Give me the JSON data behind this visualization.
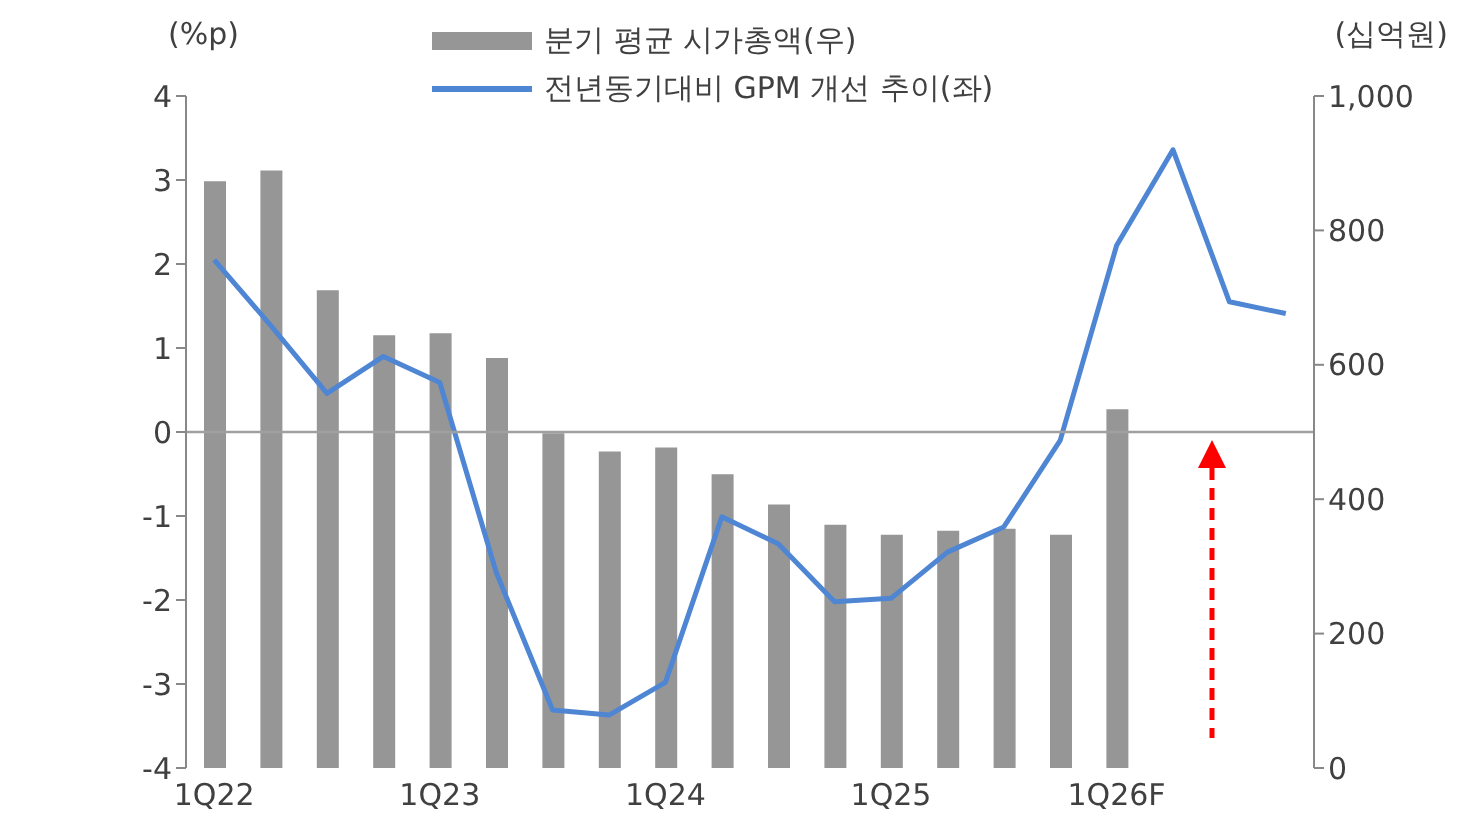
{
  "chart_data": {
    "type": "bar",
    "categories": [
      "1Q22",
      null,
      null,
      null,
      "1Q23",
      null,
      null,
      null,
      "1Q24",
      null,
      null,
      null,
      "1Q25",
      null,
      null,
      null,
      "1Q26F",
      null,
      null,
      null
    ],
    "ylabel": "(%p)",
    "y2label": "(십억원)",
    "series": [
      {
        "name": "분기 평균 시가총액(우)",
        "axis": "y2",
        "color": "#969696",
        "values": [
          873,
          889,
          711,
          644,
          647,
          610,
          498,
          471,
          477,
          437,
          392,
          362,
          347,
          353,
          356,
          347,
          534,
          null,
          null,
          null
        ]
      },
      {
        "name": "전년동기대비 GPM 개선 추이(좌)",
        "type": "line",
        "color": "#4f86d4",
        "values": [
          2.05,
          1.27,
          0.46,
          0.9,
          0.59,
          -1.67,
          -3.31,
          -3.37,
          -2.98,
          -1.01,
          -1.33,
          -2.02,
          -1.98,
          -1.43,
          -1.13,
          -0.1,
          2.22,
          3.36,
          1.55,
          1.41
        ]
      }
    ],
    "ylim": [
      -4,
      4
    ],
    "yticks": [
      -4,
      -3,
      -2,
      -1,
      0,
      1,
      2,
      3,
      4
    ],
    "y2lim": [
      0,
      1000
    ],
    "y2ticks": [
      0,
      200,
      400,
      600,
      800,
      {
        "value": 1000,
        "label": "1,000"
      }
    ],
    "ref_lines": [
      {
        "axis": "y",
        "value": 0,
        "color": "#a0a0a0"
      }
    ],
    "legend": "top",
    "grid": false,
    "marker": "none"
  }
}
